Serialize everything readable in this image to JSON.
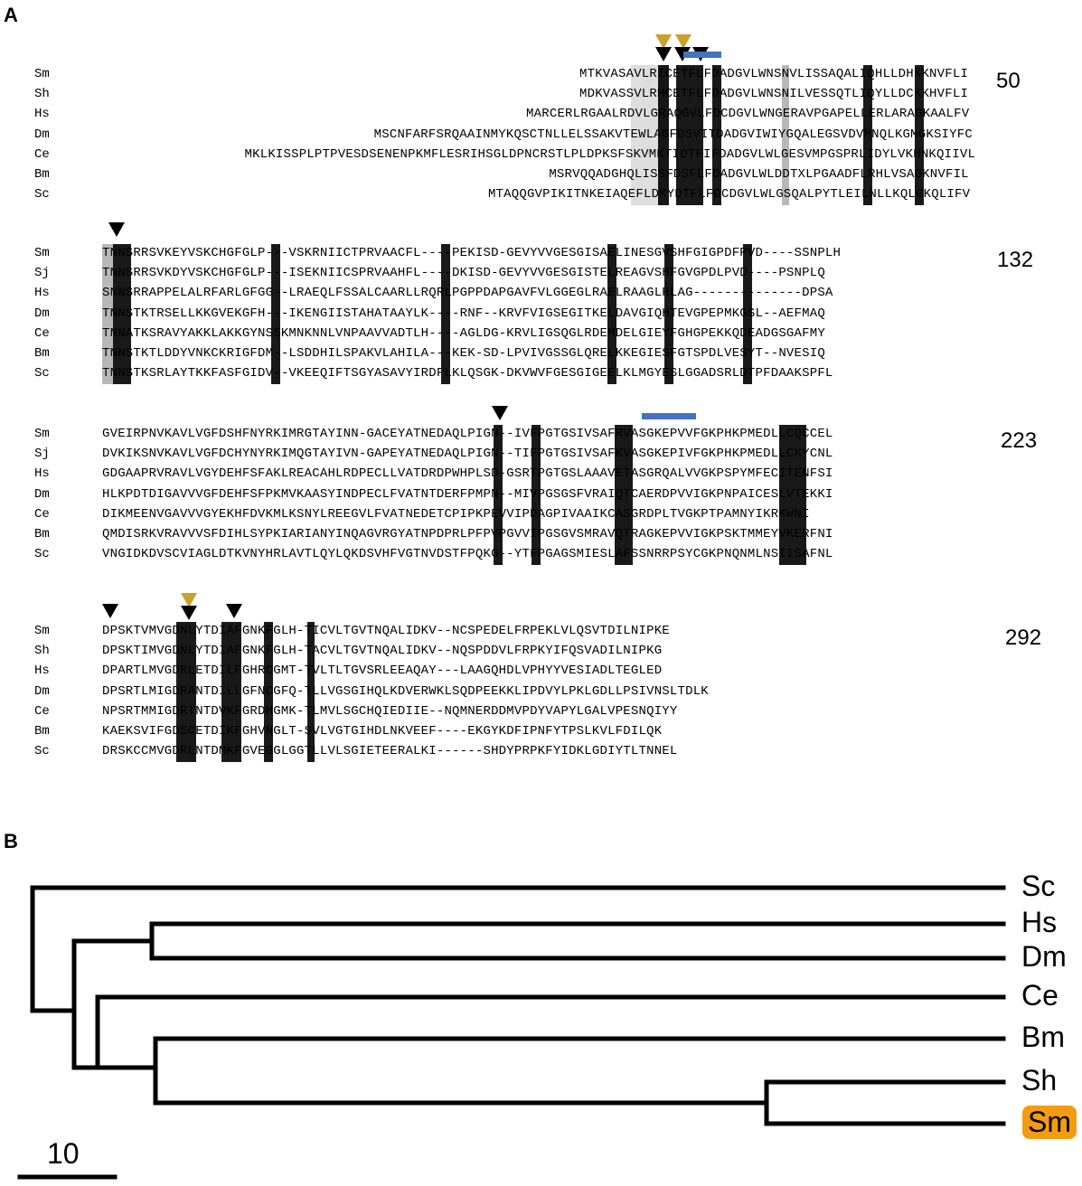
{
  "panel_a": {
    "letter": "A",
    "blocks": [
      {
        "end_pos": "50",
        "rows": [
          {
            "species": "Sm",
            "seq": "MTKVASAVLRICETFLFDADGVLWNSNVLISSAQALIQHLLDHKKNVFLI"
          },
          {
            "species": "Sh",
            "seq": "MDKVASSVLRMCETFLFDADGVLWNSNILVESSQTLIQYLLDCKKHVFLI"
          },
          {
            "species": "Hs",
            "seq": "MARCERLRGAALRDVLGRAQGVLFDCDGVLWNGERAVPGAPELLERLARAGKAALFV"
          },
          {
            "species": "Dm",
            "seq": "MSCNFARFSRQAAINMYKQSCTNLLELSSAKVTEWLAGFDSVITDADGVIWIYGQALEGSVDVMNQLKGMGKSIYFC"
          },
          {
            "species": "Ce",
            "seq": "MKLKISSPLPTPVESDSENENPKMFLESRIHSGLDPNCRSTLPLDPKSFSKVMKTIDTFIFDADGVLWLGESVMPGSPRLIDYLVKHNKQIIVL"
          },
          {
            "species": "Bm",
            "seq": "MSRVQQADGHQLISSFDSFLFDADGVLWLDDTXLPGAADFLRHLVSAGKNVFIL"
          },
          {
            "species": "Sc",
            "seq": "MTAQQGVPIKITNKEIAQEFLDKYDTFLFDCDGVLWLGSQALPYTLEILNLLKQLGKQLIFV"
          }
        ]
      },
      {
        "end_pos": "132",
        "rows": [
          {
            "species": "Sm",
            "seq": "TNNSRRSVKEYVSKCHGFGLP---VSKRNIICTPRVAACFL----PEKISD-GEVYVVGESGISAELINESGVSHFGIGPDFPVD----SSNPLH"
          },
          {
            "species": "Sj",
            "seq": "TNNSRRSVKDYVSKCHGFGLP---ISEKNIICSPRVAAHFL----DKISD-GEVYVVGESGISTELREAGVSHFGVGPDLPVD----PSNPLQ"
          },
          {
            "species": "Hs",
            "seq": "SNNSRRAPPELALRFARLGFGG--LRAEQLFSSALCAARLLRQRLPGPPDAPGAVFVLGGEGLRAELRAAGLRLAG--------------DPSA"
          },
          {
            "species": "Dm",
            "seq": "TNNSTKTRSELLKKGVEKGFH---IKENGIISTAHATAAYLK----RNF--KRVFVIGSEGITKELDAVGIQHTEVGPEPMKGSL--AEFMAQ"
          },
          {
            "species": "Ce",
            "seq": "TNNATKSRAVYAKKLAKKGYNSSKMNKNNLVNPAAVVADTLH----AGLDG-KRVLIGSQGLRDEMDELGIEYFGHGPEKKQDEADGSGAFMY"
          },
          {
            "species": "Bm",
            "seq": "TNNSTKTLDDYVNKCKRIGFDM--LSDDHILSPAKVLAHILA---KEK-SD-LPVIVGSSGLQRELKKEGIESFGTSPDLVESYT--NVESIQ"
          },
          {
            "species": "Sc",
            "seq": "TNNSTKSRLAYTKKFASFGIDV--VKEEQIFTSGYASAVYIRDFLKLQSGK-DKVWVFGESGIGEELKLMGYESLGGADSRLDTPFDAAKSPFL"
          }
        ]
      },
      {
        "end_pos": "223",
        "rows": [
          {
            "species": "Sm",
            "seq": "GVEIRPNVKAVLVGFDSHFNYRKIMRGTAYINN-GACEYATNEDAQLPIGN--IVFPGTGSIVSAFRVASGKEPVVFGKPHKPMEDLLCQCCEL"
          },
          {
            "species": "Sj",
            "seq": "DVKIKSNVKAVLVGFDCHYNYRKIMQGTAYIVN-GAPEYATNEDAQLPIGN--TIFPGTGSIVSAFKVASGKEPIVFGKPHKPMEDLLCKYCNL"
          },
          {
            "species": "Hs",
            "seq": "GDGAAPRVRAVLVGYDEHFSFAKLREACAHLRDPECLLVATDRDPWHPLSD-GSRTPGTGSLAAAVETASGRQALVVGKPSPYMFECITENFSI"
          },
          {
            "species": "Dm",
            "seq": "HLKPDTDIGAVVVGFDEHFSFPKMVKAASYINDPECLFVATNTDERFPMPN--MIVPGSGSFVRAIQTCAERDPVVIGKPNPAICESLVTEKKI"
          },
          {
            "species": "Ce",
            "seq": "DIKMEENVGAVVVGYEKHFDVKMLKSNYLREEGVLFVATNEDETCPIPKPEVVIPDAGPIVAAIKCASGRDPLTVGKPTPAMNYIKRKWNI"
          },
          {
            "species": "Bm",
            "seq": "QMDISRKVRAVVVSFDIHLSYPKIARIANYINQAGVRGYATNPDPRLPFPVPGVVIPGSGVSMRAVQTRAGKEPVVIGKPSKTMMEYVKERFNI"
          },
          {
            "species": "Sc",
            "seq": "VNGIDKDVSCVIAGLDTKVNYHRLAVTLQYLQKDSVHFVGTNVDSTFPQKG--YTFPGAGSMIESLAFSSNRRPSYCGKPNQNMLNSIISAFNL"
          }
        ]
      },
      {
        "end_pos": "292",
        "rows": [
          {
            "species": "Sm",
            "seq": "DPSKTVMVGDNLYTDIAFGNKFGLH-TICVLTGVTNQALIDKV--NCSPEDELFRPEKLVLQSVTDILNIPKE"
          },
          {
            "species": "Sh",
            "seq": "DPSKTIMVGDNLYTDIAFGNKFGLH-TACVLTGVTNQALIDKV--NQSPDDVLFRPKYIFQSVADILNIPKG"
          },
          {
            "species": "Hs",
            "seq": "DPARTLMVGDRLETDILFGHRCGMT-TVLTLTGVSRLEEAQAY---LAAGQHDLVPHYYVESIADLTEGLED"
          },
          {
            "species": "Dm",
            "seq": "DPSRTLMIGDRANTDILLGFNCGFQ-TLLVGSGIHQLKDVERWKLSQDPEEKKLIPDVYLPKLGDLLPSIVNSLTDLK"
          },
          {
            "species": "Ce",
            "seq": "NPSRTMMIGDRTNTDVKFGRDHGMK-TLMVLSGCHQIEDIIE--NQMNERDDMVPDYVAPYLGALVPESNQIYY"
          },
          {
            "species": "Bm",
            "seq": "KAEKSVIFGDSCETDIKFGHVNGLT-SVLVGTGIHDLNKVEEF----EKGYKDFIPNFYTPSLKVLFDILQK"
          },
          {
            "species": "Sc",
            "seq": "DRSKCCMVGDRLNTDMKFGVEGGLGGTLLVLSGIETEERALKI------SHDYPRPKFYIDKLGDIYTLTNNEL"
          }
        ]
      }
    ]
  },
  "panel_b": {
    "letter": "B",
    "leaves": [
      "Sc",
      "Hs",
      "Dm",
      "Ce",
      "Bm",
      "Sh",
      "Sm"
    ],
    "highlighted_leaf": "Sm",
    "highlight_color": "#f39c12",
    "scale_label": "10"
  },
  "colors": {
    "marker_black": "#000000",
    "marker_gold": "#c9a227",
    "motif_bar": "#4472c4",
    "shade_dark": "#000000",
    "shade_mid": "#9a9a9a",
    "shade_light": "#d0d0d0"
  }
}
